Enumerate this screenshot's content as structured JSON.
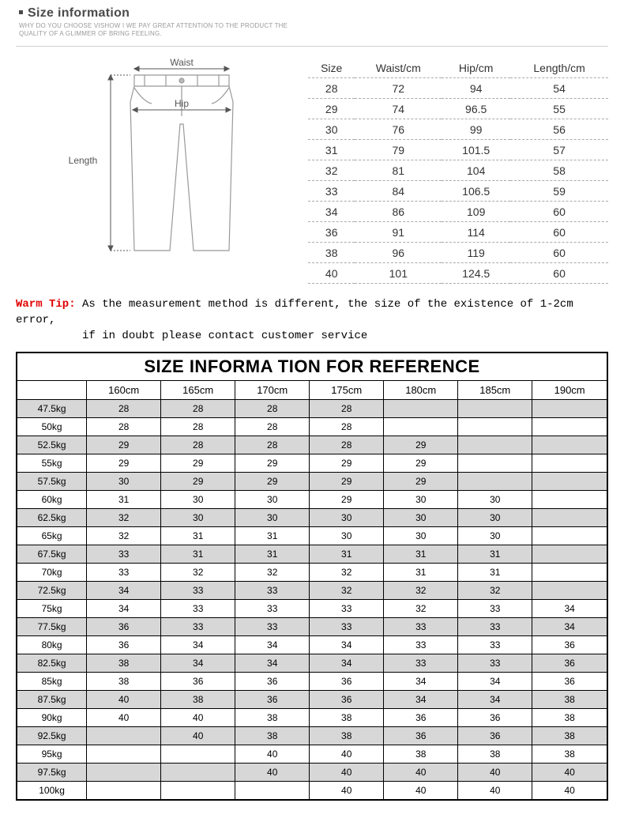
{
  "header": {
    "title": "Size information",
    "subtitle": "WHY DO YOU CHOOSE VISHOW I WE PAY GREAT ATTENTION TO THE PRODUCT THE QUALITY OF A GLIMMER OF BRING FEELING."
  },
  "diagram": {
    "labels": {
      "waist": "Waist",
      "hip": "Hip",
      "length": "Length"
    },
    "line_color": "#888888",
    "arrow_color": "#555555",
    "text_color": "#555555"
  },
  "size_table": {
    "columns": [
      "Size",
      "Waist/cm",
      "Hip/cm",
      "Length/cm"
    ],
    "rows": [
      [
        "28",
        "72",
        "94",
        "54"
      ],
      [
        "29",
        "74",
        "96.5",
        "55"
      ],
      [
        "30",
        "76",
        "99",
        "56"
      ],
      [
        "31",
        "79",
        "101.5",
        "57"
      ],
      [
        "32",
        "81",
        "104",
        "58"
      ],
      [
        "33",
        "84",
        "106.5",
        "59"
      ],
      [
        "34",
        "86",
        "109",
        "60"
      ],
      [
        "36",
        "91",
        "114",
        "60"
      ],
      [
        "38",
        "96",
        "119",
        "60"
      ],
      [
        "40",
        "101",
        "124.5",
        "60"
      ]
    ],
    "border_color": "#aaaaaa"
  },
  "warm_tip": {
    "label": "Warm Tip:",
    "text_line1": "As the measurement method is different, the size of the existence of 1-2cm error,",
    "text_line2": "if in doubt please contact customer service",
    "label_color": "#e10000"
  },
  "reference_table": {
    "title": "SIZE INFORMA TION FOR REFERENCE",
    "height_columns": [
      "160cm",
      "165cm",
      "170cm",
      "175cm",
      "180cm",
      "185cm",
      "190cm"
    ],
    "rows": [
      {
        "weight": "47.5kg",
        "vals": [
          "28",
          "28",
          "28",
          "28",
          "",
          "",
          ""
        ]
      },
      {
        "weight": "50kg",
        "vals": [
          "28",
          "28",
          "28",
          "28",
          "",
          "",
          ""
        ]
      },
      {
        "weight": "52.5kg",
        "vals": [
          "29",
          "28",
          "28",
          "28",
          "29",
          "",
          ""
        ]
      },
      {
        "weight": "55kg",
        "vals": [
          "29",
          "29",
          "29",
          "29",
          "29",
          "",
          ""
        ]
      },
      {
        "weight": "57.5kg",
        "vals": [
          "30",
          "29",
          "29",
          "29",
          "29",
          "",
          ""
        ]
      },
      {
        "weight": "60kg",
        "vals": [
          "31",
          "30",
          "30",
          "29",
          "30",
          "30",
          ""
        ]
      },
      {
        "weight": "62.5kg",
        "vals": [
          "32",
          "30",
          "30",
          "30",
          "30",
          "30",
          ""
        ]
      },
      {
        "weight": "65kg",
        "vals": [
          "32",
          "31",
          "31",
          "30",
          "30",
          "30",
          ""
        ]
      },
      {
        "weight": "67.5kg",
        "vals": [
          "33",
          "31",
          "31",
          "31",
          "31",
          "31",
          ""
        ]
      },
      {
        "weight": "70kg",
        "vals": [
          "33",
          "32",
          "32",
          "32",
          "31",
          "31",
          ""
        ]
      },
      {
        "weight": "72.5kg",
        "vals": [
          "34",
          "33",
          "33",
          "32",
          "32",
          "32",
          ""
        ]
      },
      {
        "weight": "75kg",
        "vals": [
          "34",
          "33",
          "33",
          "33",
          "32",
          "33",
          "34"
        ]
      },
      {
        "weight": "77.5kg",
        "vals": [
          "36",
          "33",
          "33",
          "33",
          "33",
          "33",
          "34"
        ]
      },
      {
        "weight": "80kg",
        "vals": [
          "36",
          "34",
          "34",
          "34",
          "33",
          "33",
          "36"
        ]
      },
      {
        "weight": "82.5kg",
        "vals": [
          "38",
          "34",
          "34",
          "34",
          "33",
          "33",
          "36"
        ]
      },
      {
        "weight": "85kg",
        "vals": [
          "38",
          "36",
          "36",
          "36",
          "34",
          "34",
          "36"
        ]
      },
      {
        "weight": "87.5kg",
        "vals": [
          "40",
          "38",
          "36",
          "36",
          "34",
          "34",
          "38"
        ]
      },
      {
        "weight": "90kg",
        "vals": [
          "40",
          "40",
          "38",
          "38",
          "36",
          "36",
          "38"
        ]
      },
      {
        "weight": "92.5kg",
        "vals": [
          "",
          "40",
          "38",
          "38",
          "36",
          "36",
          "38"
        ]
      },
      {
        "weight": "95kg",
        "vals": [
          "",
          "",
          "40",
          "40",
          "38",
          "38",
          "38"
        ]
      },
      {
        "weight": "97.5kg",
        "vals": [
          "",
          "",
          "40",
          "40",
          "40",
          "40",
          "40"
        ]
      },
      {
        "weight": "100kg",
        "vals": [
          "",
          "",
          "",
          "40",
          "40",
          "40",
          "40"
        ]
      }
    ],
    "band_color": "#d7d7d7",
    "border_color": "#000000"
  }
}
